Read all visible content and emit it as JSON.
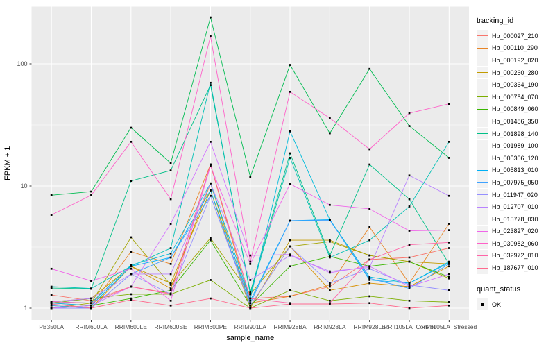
{
  "figure": {
    "panel_bg": "#EBEBEB",
    "grid_color": "#FFFFFF",
    "axis_text_color": "#4D4D4D",
    "tick_mark_color": "#333333",
    "y_axis_label": "FPKM + 1",
    "x_axis_label": "sample_name"
  },
  "legend": {
    "tracking_title": "tracking_id",
    "quant_title": "quant_status",
    "quant_entries": [
      {
        "label": "OK",
        "shape": "black-square"
      }
    ]
  },
  "chart_data": {
    "type": "line",
    "title": "",
    "xlabel": "sample_name",
    "ylabel": "FPKM + 1",
    "y_scale": "log10",
    "y_ticks": [
      1,
      10,
      100
    ],
    "y_minor_ticks": [
      3.1623,
      31.623
    ],
    "ylim": [
      0.95,
      320
    ],
    "grid": true,
    "legend_position": "right",
    "point_marker": "black-square",
    "categories": [
      "PB350LA",
      "RRIM600LA",
      "RRIM600LE",
      "RRIM600SE",
      "RRIM600PE",
      "RRIM901LA",
      "RRIM928BA",
      "RRIM928LA",
      "RRIM928LE",
      "RRII105LA_Control",
      "RRII105LA_Stressed"
    ],
    "series": [
      {
        "name": "Hb_000027_210",
        "color": "#F8766D",
        "values": [
          1.28,
          1.15,
          1.5,
          1.32,
          15,
          1.2,
          1.25,
          1.5,
          2.5,
          2.6,
          3.1
        ]
      },
      {
        "name": "Hb_000110_290",
        "color": "#E88526",
        "values": [
          1.1,
          1.05,
          2.9,
          2.3,
          15,
          1.1,
          1.25,
          1.55,
          4.6,
          1.6,
          4.9
        ]
      },
      {
        "name": "Hb_000192_020",
        "color": "#D89000",
        "values": [
          1.05,
          1.0,
          2.2,
          1.45,
          10.5,
          1.05,
          3.2,
          1.4,
          1.6,
          1.5,
          2.2
        ]
      },
      {
        "name": "Hb_000260_280",
        "color": "#C29B00",
        "values": [
          1.13,
          1.2,
          2.2,
          1.6,
          9.2,
          1.0,
          3.6,
          3.6,
          2.7,
          2.4,
          2.3
        ]
      },
      {
        "name": "Hb_000364_190",
        "color": "#A3A500",
        "values": [
          1.0,
          1.1,
          3.8,
          1.55,
          3.75,
          1.3,
          3.2,
          3.5,
          2.7,
          2.4,
          1.75
        ]
      },
      {
        "name": "Hb_000754_070",
        "color": "#7CAE00",
        "values": [
          1.1,
          1.2,
          1.3,
          1.3,
          1.7,
          1.0,
          1.4,
          1.15,
          1.25,
          1.15,
          1.12
        ]
      },
      {
        "name": "Hb_000849_060",
        "color": "#39B600",
        "values": [
          1.0,
          1.05,
          1.2,
          1.4,
          3.6,
          1.05,
          2.2,
          2.65,
          2.2,
          2.4,
          1.8
        ]
      },
      {
        "name": "Hb_001486_350",
        "color": "#00BC51",
        "values": [
          8.4,
          9.0,
          30,
          15.4,
          240,
          11.9,
          98,
          27,
          91,
          31,
          17
        ]
      },
      {
        "name": "Hb_001898_140",
        "color": "#00C087",
        "values": [
          1.46,
          1.44,
          11,
          13.4,
          67,
          1.35,
          18.5,
          2.7,
          15,
          7.8,
          2.3
        ]
      },
      {
        "name": "Hb_001989_100",
        "color": "#00C0B4",
        "values": [
          1.5,
          1.45,
          2.2,
          3.1,
          70,
          1.3,
          17,
          2.6,
          3.6,
          6.8,
          23
        ]
      },
      {
        "name": "Hb_005306_120",
        "color": "#00BBDA",
        "values": [
          1.13,
          1.1,
          2.25,
          2.8,
          10.5,
          1.2,
          28,
          5.3,
          1.8,
          1.6,
          2.4
        ]
      },
      {
        "name": "Hb_005813_010",
        "color": "#00B0F6",
        "values": [
          1.1,
          1.05,
          2.2,
          2.6,
          9.2,
          1.15,
          5.2,
          5.3,
          1.7,
          1.6,
          2.35
        ]
      },
      {
        "name": "Hb_007975_050",
        "color": "#3EA2FF",
        "values": [
          1.05,
          1.0,
          1.9,
          2.6,
          8.3,
          1.1,
          5.2,
          5.25,
          1.75,
          1.45,
          2.3
        ]
      },
      {
        "name": "Hb_011947_020",
        "color": "#9590FF",
        "values": [
          1.0,
          1.0,
          1.9,
          1.3,
          8.3,
          1.05,
          3.2,
          1.6,
          2.1,
          1.55,
          1.4
        ]
      },
      {
        "name": "Hb_012707_010",
        "color": "#B983FF",
        "values": [
          1.13,
          1.2,
          1.9,
          1.9,
          10.5,
          1.7,
          2.7,
          2.0,
          2.15,
          12.2,
          8.3
        ]
      },
      {
        "name": "Hb_015778_030",
        "color": "#D376FF",
        "values": [
          1.0,
          1.05,
          1.5,
          4.9,
          23,
          2.7,
          2.75,
          1.95,
          2.2,
          1.5,
          1.9
        ]
      },
      {
        "name": "Hb_023827_020",
        "color": "#F066EA",
        "values": [
          2.1,
          1.67,
          2.1,
          1.15,
          14.6,
          2.3,
          10.4,
          7.0,
          6.5,
          4.3,
          4.35
        ]
      },
      {
        "name": "Hb_030982_060",
        "color": "#FF61C9",
        "values": [
          5.8,
          8.4,
          23,
          7.8,
          168,
          2.4,
          59,
          36,
          20,
          39.5,
          47
        ]
      },
      {
        "name": "Hb_032972_010",
        "color": "#FF65A8",
        "values": [
          1.13,
          1.1,
          1.5,
          1.3,
          15,
          1.2,
          1.1,
          1.1,
          2.5,
          3.3,
          3.45
        ]
      },
      {
        "name": "Hb_187677_010",
        "color": "#FF6B8E",
        "values": [
          1.08,
          1.0,
          1.17,
          1.05,
          1.2,
          1.0,
          1.08,
          1.08,
          1.1,
          1.0,
          1.05
        ]
      }
    ]
  }
}
